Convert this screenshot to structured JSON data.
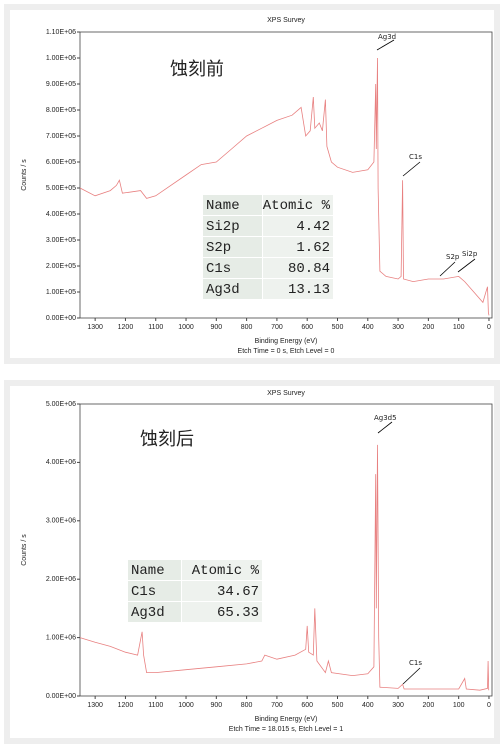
{
  "chart_data": [
    {
      "type": "line",
      "title": "XPS Survey",
      "xlabel": "Binding Energy (eV)",
      "ylabel": "Counts / s",
      "note": "Etch Time = 0 s, Etch Level = 0",
      "xlim": [
        1350,
        -10
      ],
      "ylim": [
        0,
        1100000
      ],
      "xticks": [
        1300,
        1200,
        1100,
        1000,
        900,
        800,
        700,
        600,
        500,
        400,
        300,
        200,
        100,
        0
      ],
      "yticks": [
        {
          "value": 0,
          "label": "0.00E+00"
        },
        {
          "value": 100000,
          "label": "1.00E+05"
        },
        {
          "value": 200000,
          "label": "2.00E+05"
        },
        {
          "value": 300000,
          "label": "3.00E+05"
        },
        {
          "value": 400000,
          "label": "4.00E+05"
        },
        {
          "value": 500000,
          "label": "5.00E+05"
        },
        {
          "value": 600000,
          "label": "6.00E+05"
        },
        {
          "value": 700000,
          "label": "7.00E+05"
        },
        {
          "value": 800000,
          "label": "8.00E+05"
        },
        {
          "value": 900000,
          "label": "9.00E+05"
        },
        {
          "value": 1000000,
          "label": "1.00E+06"
        },
        {
          "value": 1100000,
          "label": "1.10E+06"
        }
      ],
      "annotations": [
        "蚀刻前",
        "Ag3d",
        "C1s",
        "S2p",
        "Si2p"
      ],
      "table": {
        "header": [
          "Name",
          "Atomic %"
        ],
        "rows": [
          [
            "Si2p",
            4.42
          ],
          [
            "S2p",
            1.62
          ],
          [
            "C1s",
            80.84
          ],
          [
            "Ag3d",
            13.13
          ]
        ]
      },
      "series": [
        {
          "color": "#e88080",
          "x": [
            1350,
            1300,
            1250,
            1230,
            1220,
            1210,
            1150,
            1130,
            1100,
            1000,
            950,
            900,
            850,
            800,
            750,
            700,
            650,
            620,
            605,
            590,
            580,
            575,
            560,
            550,
            540,
            535,
            520,
            500,
            450,
            400,
            380,
            374,
            372,
            368,
            366,
            360,
            340,
            300,
            290,
            285,
            282,
            250,
            200,
            150,
            100,
            80,
            50,
            20,
            10,
            5,
            2,
            0
          ],
          "values": [
            500000,
            470000,
            490000,
            510000,
            530000,
            480000,
            490000,
            460000,
            470000,
            550000,
            590000,
            600000,
            650000,
            700000,
            730000,
            760000,
            780000,
            810000,
            700000,
            720000,
            850000,
            730000,
            750000,
            720000,
            840000,
            660000,
            600000,
            580000,
            560000,
            570000,
            600000,
            900000,
            650000,
            1000000,
            500000,
            180000,
            160000,
            150000,
            160000,
            530000,
            150000,
            140000,
            150000,
            150000,
            160000,
            140000,
            100000,
            60000,
            100000,
            120000,
            20000,
            10000
          ]
        }
      ]
    },
    {
      "type": "line",
      "title": "XPS Survey",
      "xlabel": "Binding Energy (eV)",
      "ylabel": "Counts / s",
      "note": "Etch Time = 18.015 s, Etch Level = 1",
      "xlim": [
        1350,
        -10
      ],
      "ylim": [
        0,
        5000000
      ],
      "xticks": [
        1300,
        1200,
        1100,
        1000,
        900,
        800,
        700,
        600,
        500,
        400,
        300,
        200,
        100,
        0
      ],
      "yticks": [
        {
          "value": 0,
          "label": "0.00E+00"
        },
        {
          "value": 1000000,
          "label": "1.00E+06"
        },
        {
          "value": 2000000,
          "label": "2.00E+06"
        },
        {
          "value": 3000000,
          "label": "3.00E+06"
        },
        {
          "value": 4000000,
          "label": "4.00E+06"
        },
        {
          "value": 5000000,
          "label": "5.00E+06"
        }
      ],
      "annotations": [
        "蚀刻后",
        "Ag3d5",
        "C1s"
      ],
      "table": {
        "header": [
          "Name",
          "Atomic %"
        ],
        "rows": [
          [
            "C1s",
            34.67
          ],
          [
            "Ag3d",
            65.33
          ]
        ]
      },
      "series": [
        {
          "color": "#e88080",
          "x": [
            1350,
            1300,
            1250,
            1200,
            1160,
            1145,
            1140,
            1130,
            1100,
            1000,
            900,
            800,
            750,
            740,
            700,
            640,
            605,
            600,
            595,
            580,
            575,
            568,
            540,
            530,
            520,
            450,
            400,
            380,
            374,
            372,
            368,
            364,
            360,
            300,
            285,
            280,
            200,
            100,
            80,
            75,
            30,
            5,
            3,
            1
          ],
          "values": [
            1000000,
            920000,
            850000,
            750000,
            700000,
            1100000,
            700000,
            400000,
            400000,
            450000,
            500000,
            550000,
            600000,
            700000,
            630000,
            700000,
            800000,
            1200000,
            750000,
            700000,
            1500000,
            600000,
            400000,
            600000,
            400000,
            350000,
            380000,
            500000,
            3800000,
            1500000,
            4300000,
            1000000,
            150000,
            130000,
            200000,
            120000,
            120000,
            120000,
            300000,
            120000,
            100000,
            130000,
            600000,
            100000
          ]
        }
      ]
    }
  ]
}
